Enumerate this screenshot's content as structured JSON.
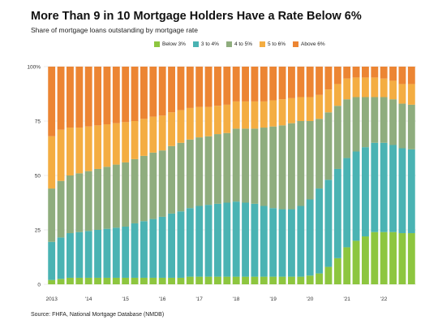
{
  "chart_data": {
    "type": "bar",
    "stacked": true,
    "percent_stacked": true,
    "title": "More Than 9 in 10 Mortgage Holders Have a Rate Below 6%",
    "subtitle": "Share of mortgage loans outstanding by mortgage rate",
    "source": "Source: FHFA, National Mortgage Database (NMDB)",
    "xlabel": "",
    "ylabel": "",
    "ylim": [
      0,
      100
    ],
    "y_ticks": [
      "0",
      "25",
      "50",
      "75",
      "100%"
    ],
    "y_tick_values": [
      0,
      25,
      50,
      75,
      100
    ],
    "x_tick_labels": [
      "2013",
      "'14",
      "'15",
      "'16",
      "'17",
      "'18",
      "'19",
      "'20",
      "'21",
      "'22"
    ],
    "x_tick_positions": [
      0,
      4,
      8,
      12,
      16,
      20,
      24,
      28,
      32,
      36
    ],
    "grid": true,
    "legend_position": "top-center",
    "categories": [
      "2013 Q1",
      "2013 Q2",
      "2013 Q3",
      "2013 Q4",
      "2014 Q1",
      "2014 Q2",
      "2014 Q3",
      "2014 Q4",
      "2015 Q1",
      "2015 Q2",
      "2015 Q3",
      "2015 Q4",
      "2016 Q1",
      "2016 Q2",
      "2016 Q3",
      "2016 Q4",
      "2017 Q1",
      "2017 Q2",
      "2017 Q3",
      "2017 Q4",
      "2018 Q1",
      "2018 Q2",
      "2018 Q3",
      "2018 Q4",
      "2019 Q1",
      "2019 Q2",
      "2019 Q3",
      "2019 Q4",
      "2020 Q1",
      "2020 Q2",
      "2020 Q3",
      "2020 Q4",
      "2021 Q1",
      "2021 Q2",
      "2021 Q3",
      "2021 Q4",
      "2022 Q1",
      "2022 Q2",
      "2022 Q3",
      "2022 Q4"
    ],
    "series": [
      {
        "name": "Below 3%",
        "color": "#8dc63f",
        "values": [
          2,
          2.5,
          3,
          3,
          3,
          3,
          3,
          3,
          3,
          3,
          3,
          3,
          3,
          3,
          3,
          3.5,
          3.5,
          3.5,
          3.5,
          3.5,
          3.5,
          3.5,
          3.5,
          3.5,
          3.5,
          3.5,
          3.5,
          3.5,
          4,
          5,
          8,
          12,
          17,
          20,
          22,
          24,
          24,
          24,
          23.5,
          23.5
        ]
      },
      {
        "name": "3 to 4%",
        "color": "#4ab3b3",
        "values": [
          17.5,
          19,
          20.5,
          21,
          21.5,
          22,
          22.5,
          23,
          23.5,
          25,
          26,
          27,
          28,
          29.5,
          30.5,
          31.5,
          32.5,
          33,
          33.5,
          34,
          34.5,
          34,
          33.5,
          32.5,
          31.5,
          31,
          31,
          32.5,
          35,
          39,
          40,
          41,
          41,
          41,
          41,
          41,
          41,
          40,
          39,
          38.5
        ]
      },
      {
        "name": "4 to 5%",
        "color": "#8fad7e",
        "values": [
          24.5,
          26,
          26.5,
          27,
          27.5,
          28,
          28.5,
          29,
          29.5,
          29.5,
          30,
          30.5,
          30.5,
          31,
          31.5,
          31.5,
          31.5,
          31.5,
          32,
          32,
          33.5,
          34,
          34.5,
          36,
          37.5,
          38.5,
          39.5,
          39,
          36,
          32,
          31,
          29,
          27,
          25,
          23,
          21,
          21,
          21,
          20.5,
          20.5
        ]
      },
      {
        "name": "5 to 6%",
        "color": "#f4ad42",
        "values": [
          24,
          23.5,
          22,
          21,
          20.5,
          20,
          19.5,
          19,
          18.5,
          17.5,
          17,
          16.5,
          16,
          15.5,
          15,
          14.5,
          14,
          13.5,
          13,
          13,
          12.5,
          12.5,
          12.5,
          12,
          12,
          12,
          11.5,
          11,
          11,
          11,
          10.5,
          10,
          9.5,
          9,
          9,
          9,
          8.5,
          8.5,
          9,
          9.5
        ]
      },
      {
        "name": "Above 6%",
        "color": "#ec8533",
        "values": [
          32,
          29,
          28,
          28,
          27.5,
          27,
          26.5,
          26,
          25.5,
          25,
          24,
          23,
          22.5,
          21,
          20,
          19,
          18.5,
          18.5,
          18,
          17.5,
          16,
          16,
          16,
          16,
          15.5,
          15,
          14.5,
          14,
          14,
          13,
          10.5,
          8,
          5.5,
          5,
          5,
          5,
          5.5,
          6.5,
          8,
          8
        ]
      }
    ]
  }
}
